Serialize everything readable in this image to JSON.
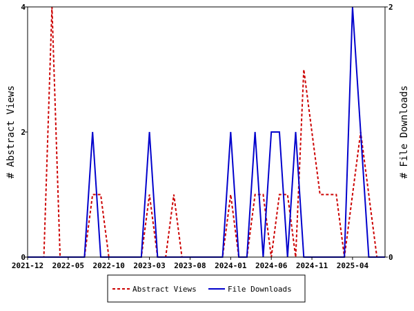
{
  "chart_data": {
    "type": "line",
    "title": "",
    "xlabel": "",
    "ylabel_left": "# Abstract Views",
    "ylabel_right": "# File Downloads",
    "ylim_left": [
      0,
      4
    ],
    "ylim_right": [
      0,
      2
    ],
    "yticks_left": [
      0,
      2,
      4
    ],
    "yticks_right": [
      0,
      2
    ],
    "grid": false,
    "legend_position": "bottom-center",
    "x_ticks": [
      "2021-12",
      "2022-05",
      "2022-10",
      "2023-03",
      "2023-08",
      "2024-01",
      "2024-06",
      "2024-11",
      "2025-04"
    ],
    "x_start": "2021-12",
    "x_end": "2025-08",
    "series": [
      {
        "name": "Abstract Views",
        "axis": "left",
        "color": "#cc0000",
        "style": "dashed",
        "points": [
          [
            "2021-12",
            0
          ],
          [
            "2022-01",
            0
          ],
          [
            "2022-02",
            0
          ],
          [
            "2022-03",
            4
          ],
          [
            "2022-04",
            0
          ],
          [
            "2022-05",
            0
          ],
          [
            "2022-06",
            0
          ],
          [
            "2022-07",
            0
          ],
          [
            "2022-08",
            1
          ],
          [
            "2022-09",
            1
          ],
          [
            "2022-10",
            0
          ],
          [
            "2022-11",
            0
          ],
          [
            "2022-12",
            0
          ],
          [
            "2023-01",
            0
          ],
          [
            "2023-02",
            0
          ],
          [
            "2023-03",
            1
          ],
          [
            "2023-04",
            0
          ],
          [
            "2023-05",
            0
          ],
          [
            "2023-06",
            1
          ],
          [
            "2023-07",
            0
          ],
          [
            "2023-08",
            0
          ],
          [
            "2023-09",
            0
          ],
          [
            "2023-10",
            0
          ],
          [
            "2023-11",
            0
          ],
          [
            "2023-12",
            0
          ],
          [
            "2024-01",
            1
          ],
          [
            "2024-02",
            0
          ],
          [
            "2024-03",
            0
          ],
          [
            "2024-04",
            1
          ],
          [
            "2024-05",
            1
          ],
          [
            "2024-06",
            0
          ],
          [
            "2024-07",
            1
          ],
          [
            "2024-08",
            1
          ],
          [
            "2024-09",
            0
          ],
          [
            "2024-10",
            3
          ],
          [
            "2024-11",
            2
          ],
          [
            "2024-12",
            1
          ],
          [
            "2025-01",
            1
          ],
          [
            "2025-02",
            1
          ],
          [
            "2025-03",
            0
          ],
          [
            "2025-04",
            1
          ],
          [
            "2025-05",
            2
          ],
          [
            "2025-06",
            1
          ],
          [
            "2025-07",
            0
          ],
          [
            "2025-08",
            0
          ]
        ]
      },
      {
        "name": "File Downloads",
        "axis": "right",
        "color": "#0000cc",
        "style": "solid",
        "points": [
          [
            "2021-12",
            0
          ],
          [
            "2022-01",
            0
          ],
          [
            "2022-02",
            0
          ],
          [
            "2022-03",
            0
          ],
          [
            "2022-04",
            0
          ],
          [
            "2022-05",
            0
          ],
          [
            "2022-06",
            0
          ],
          [
            "2022-07",
            0
          ],
          [
            "2022-08",
            1
          ],
          [
            "2022-09",
            0
          ],
          [
            "2022-10",
            0
          ],
          [
            "2022-11",
            0
          ],
          [
            "2022-12",
            0
          ],
          [
            "2023-01",
            0
          ],
          [
            "2023-02",
            0
          ],
          [
            "2023-03",
            1
          ],
          [
            "2023-04",
            0
          ],
          [
            "2023-05",
            0
          ],
          [
            "2023-06",
            0
          ],
          [
            "2023-07",
            0
          ],
          [
            "2023-08",
            0
          ],
          [
            "2023-09",
            0
          ],
          [
            "2023-10",
            0
          ],
          [
            "2023-11",
            0
          ],
          [
            "2023-12",
            0
          ],
          [
            "2024-01",
            1
          ],
          [
            "2024-02",
            0
          ],
          [
            "2024-03",
            0
          ],
          [
            "2024-04",
            1
          ],
          [
            "2024-05",
            0
          ],
          [
            "2024-06",
            1
          ],
          [
            "2024-07",
            1
          ],
          [
            "2024-08",
            0
          ],
          [
            "2024-09",
            1
          ],
          [
            "2024-10",
            0
          ],
          [
            "2024-11",
            0
          ],
          [
            "2024-12",
            0
          ],
          [
            "2025-01",
            0
          ],
          [
            "2025-02",
            0
          ],
          [
            "2025-03",
            0
          ],
          [
            "2025-04",
            2
          ],
          [
            "2025-05",
            1
          ],
          [
            "2025-06",
            0
          ],
          [
            "2025-07",
            0
          ],
          [
            "2025-08",
            0
          ]
        ]
      }
    ]
  }
}
